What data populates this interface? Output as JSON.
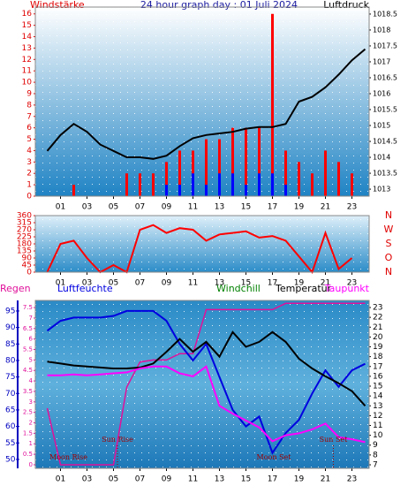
{
  "chart_data": [
    {
      "type": "combo",
      "title": "24 hour graph day : 01 Juli 2024",
      "y_label": "Windstärke",
      "y2_label": "Luftdruck",
      "x": [
        0,
        1,
        2,
        3,
        4,
        5,
        6,
        7,
        8,
        9,
        10,
        11,
        12,
        13,
        14,
        15,
        16,
        17,
        18,
        19,
        20,
        21,
        22,
        23,
        24
      ],
      "xlim": [
        -0.9,
        24.3
      ],
      "xticks": [
        {
          "value": 1,
          "label": "01"
        },
        {
          "value": 3,
          "label": "03"
        },
        {
          "value": 5,
          "label": "05"
        },
        {
          "value": 7,
          "label": "07"
        },
        {
          "value": 9,
          "label": "09"
        },
        {
          "value": 11,
          "label": "11"
        },
        {
          "value": 13,
          "label": "13"
        },
        {
          "value": 15,
          "label": "15"
        },
        {
          "value": 17,
          "label": "17"
        },
        {
          "value": 19,
          "label": "19"
        },
        {
          "value": 21,
          "label": "21"
        },
        {
          "value": 23,
          "label": "23"
        }
      ],
      "ylim": [
        0,
        16.6
      ],
      "yticks": [
        0,
        1,
        2,
        3,
        4,
        5,
        6,
        7,
        8,
        9,
        10,
        11,
        12,
        13,
        14,
        15,
        16
      ],
      "y2lim": [
        1012.78,
        1018.72
      ],
      "y2ticks": [
        1013,
        1013.5,
        1014,
        1014.5,
        1015,
        1015.5,
        1016,
        1016.5,
        1017,
        1017.5,
        1018,
        1018.5
      ],
      "series": [
        {
          "type": "bar",
          "color": "#ff0000",
          "values": [
            0,
            0,
            1,
            0,
            0,
            0,
            2,
            2,
            2,
            3,
            4,
            4,
            5,
            5,
            6,
            6,
            6,
            16,
            4,
            3,
            2,
            4,
            3,
            2,
            0
          ]
        },
        {
          "type": "bar",
          "color": "#0000ff",
          "values": [
            0,
            0,
            0,
            0,
            0,
            0,
            0,
            0,
            0,
            1,
            1,
            2,
            1,
            2,
            2,
            1,
            2,
            2,
            1,
            0,
            0,
            0,
            0,
            0,
            0
          ]
        },
        {
          "type": "line",
          "axis": "y2",
          "color": "#000000",
          "values": [
            1014.2,
            1014.7,
            1015.05,
            1014.8,
            1014.4,
            1014.2,
            1014.0,
            1014.0,
            1013.95,
            1014.05,
            1014.35,
            1014.6,
            1014.7,
            1014.75,
            1014.8,
            1014.9,
            1014.95,
            1014.95,
            1015.05,
            1015.75,
            1015.9,
            1016.2,
            1016.6,
            1017.05,
            1017.4
          ]
        }
      ]
    },
    {
      "type": "combo",
      "x": [
        0,
        1,
        2,
        3,
        4,
        5,
        6,
        7,
        8,
        9,
        10,
        11,
        12,
        13,
        14,
        15,
        16,
        17,
        18,
        19,
        20,
        21,
        22,
        23
      ],
      "xlim": [
        -0.9,
        24.3
      ],
      "xticks": [
        {
          "value": 1,
          "label": "01"
        },
        {
          "value": 3,
          "label": "03"
        },
        {
          "value": 5,
          "label": "05"
        },
        {
          "value": 7,
          "label": "07"
        },
        {
          "value": 9,
          "label": "09"
        },
        {
          "value": 11,
          "label": "11"
        },
        {
          "value": 13,
          "label": "13"
        },
        {
          "value": 15,
          "label": "15"
        },
        {
          "value": 17,
          "label": "17"
        },
        {
          "value": 19,
          "label": "19"
        },
        {
          "value": 21,
          "label": "21"
        },
        {
          "value": 23,
          "label": "23"
        }
      ],
      "ylim": [
        0,
        360
      ],
      "yticks": [
        0,
        45,
        90,
        135,
        180,
        225,
        270,
        315,
        360
      ],
      "compass": [
        {
          "value": 360,
          "label": "N"
        },
        {
          "value": 270,
          "label": "W"
        },
        {
          "value": 180,
          "label": "S"
        },
        {
          "value": 90,
          "label": "O"
        },
        {
          "value": 0,
          "label": "N"
        }
      ],
      "series": [
        {
          "type": "line",
          "color": "#ff0000",
          "values": [
            0,
            180,
            200,
            90,
            0,
            45,
            0,
            270,
            300,
            250,
            280,
            270,
            200,
            240,
            250,
            260,
            220,
            230,
            200,
            100,
            0,
            250,
            20,
            90
          ]
        }
      ]
    },
    {
      "type": "combo",
      "x": [
        0,
        1,
        2,
        3,
        4,
        5,
        6,
        7,
        8,
        9,
        10,
        11,
        12,
        13,
        14,
        15,
        16,
        17,
        18,
        19,
        20,
        21,
        22,
        23,
        24
      ],
      "xlim": [
        -0.9,
        24.3
      ],
      "xticks": [
        {
          "value": 1,
          "label": "01"
        },
        {
          "value": 3,
          "label": "03"
        },
        {
          "value": 5,
          "label": "05"
        },
        {
          "value": 7,
          "label": "07"
        },
        {
          "value": 9,
          "label": "09"
        },
        {
          "value": 11,
          "label": "11"
        },
        {
          "value": 13,
          "label": "13"
        },
        {
          "value": 15,
          "label": "15"
        },
        {
          "value": 17,
          "label": "17"
        },
        {
          "value": 19,
          "label": "19"
        },
        {
          "value": 21,
          "label": "21"
        },
        {
          "value": 23,
          "label": "23"
        }
      ],
      "ylim": [
        47.3,
        98.2
      ],
      "yticks": [
        50,
        55,
        60,
        65,
        70,
        75,
        80,
        85,
        90,
        95
      ],
      "y3lim": [
        -0.17,
        7.84
      ],
      "y3ticks": [
        0,
        0.5,
        1,
        1.5,
        2,
        2.5,
        3,
        3.5,
        4,
        4.5,
        5,
        5.5,
        6,
        6.5,
        7,
        7.5
      ],
      "y2lim": [
        6.64,
        23.72
      ],
      "y2ticks": [
        7,
        8,
        9,
        10,
        11,
        12,
        13,
        14,
        15,
        16,
        17,
        18,
        19,
        20,
        21,
        22,
        23
      ],
      "extra_label": "Windchill",
      "series": [
        {
          "name": "Regen",
          "type": "line",
          "axis": "y3",
          "color": "#e0109a",
          "values": [
            2.7,
            0,
            0,
            0,
            0,
            0,
            3.7,
            4.9,
            5.0,
            5.0,
            5.3,
            5.3,
            7.4,
            7.4,
            7.4,
            7.4,
            7.4,
            7.4,
            7.7,
            7.7,
            7.7,
            7.7,
            7.7,
            7.7,
            7.7
          ]
        },
        {
          "name": "Luftfeuchte",
          "type": "line",
          "color": "#0000e0",
          "values": [
            89,
            92,
            93,
            93,
            93,
            93.5,
            95,
            95,
            95,
            92,
            85,
            80,
            85,
            75,
            65,
            60,
            63,
            52,
            58,
            62,
            70,
            77,
            72,
            77,
            79
          ]
        },
        {
          "name": "Temperatur",
          "type": "line",
          "axis": "y2",
          "color": "#000000",
          "values": [
            17.5,
            17.3,
            17.1,
            17.0,
            16.9,
            16.8,
            16.8,
            16.9,
            17.3,
            18.5,
            19.8,
            18.5,
            19.5,
            18.0,
            20.5,
            19.0,
            19.5,
            20.5,
            19.5,
            17.8,
            16.8,
            16.0,
            15.3,
            14.5,
            13.0
          ]
        },
        {
          "name": "Taupunkt",
          "type": "line",
          "axis": "y2",
          "color": "#ff00ff",
          "values": [
            16.1,
            16.1,
            16.2,
            16.1,
            16.2,
            16.3,
            16.4,
            16.8,
            17.0,
            17.0,
            16.3,
            16.0,
            17.0,
            13.0,
            12.2,
            11.5,
            10.8,
            9.4,
            10.0,
            10.2,
            10.6,
            11.2,
            9.8,
            9.6,
            9.3
          ]
        }
      ],
      "annotations": [
        {
          "text": "Moon Rise",
          "x": 1.6
        },
        {
          "text": "Sun Rise",
          "x": 5.3
        },
        {
          "text": "Moon Set",
          "x": 17.1
        },
        {
          "text": "Sun Set",
          "x": 21.6
        }
      ]
    }
  ]
}
